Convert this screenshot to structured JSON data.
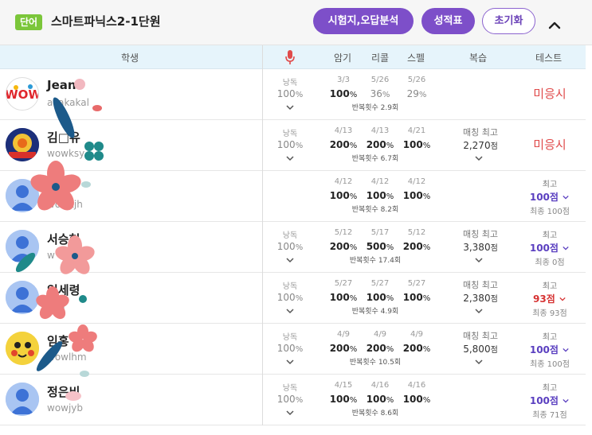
{
  "header": {
    "badge": "단어",
    "title": "스마트파닉스2-1단원",
    "btn_analysis": "시험지,오답분석",
    "btn_report": "성적표",
    "btn_reset": "초기화"
  },
  "columns": {
    "student": "학생",
    "memorize": "암기",
    "recall": "리콜",
    "spell": "스펠",
    "review": "복습",
    "test": "테스트"
  },
  "colors": {
    "accent": "#7d4fc9",
    "status_red": "#e04b4b",
    "badge_green": "#7bc63a"
  },
  "rows": [
    {
      "name": "Jean",
      "id": "akakakal",
      "read_label": "낭독",
      "read": "100",
      "read_unit": "%",
      "m_date": "3/3",
      "m": "100",
      "r_date": "5/26",
      "r": "36",
      "s_date": "5/26",
      "s": "29",
      "rep": "반복횟수 2.9회",
      "status": "미응시"
    },
    {
      "name": "김□유",
      "id": "wowksy",
      "read_label": "낭독",
      "read": "100",
      "read_unit": "%",
      "m_date": "4/13",
      "m": "200",
      "r_date": "4/13",
      "r": "200",
      "s_date": "4/21",
      "s": "100",
      "rep": "반복횟수 6.7회",
      "review_label": "매칭 최고",
      "review": "2,270",
      "review_unit": "점",
      "status": "미응시"
    },
    {
      "name": "□희",
      "id": "wowkjh",
      "m_date": "4/12",
      "m": "100",
      "r_date": "4/12",
      "r": "100",
      "s_date": "4/12",
      "s": "100",
      "rep": "반복횟수 8.2회",
      "best_label": "최고",
      "best": "100점",
      "last": "최종 100점"
    },
    {
      "name": "서승현",
      "id": "w",
      "read_label": "낭독",
      "read": "100",
      "read_unit": "%",
      "m_date": "5/12",
      "m": "200",
      "r_date": "5/17",
      "r": "500",
      "s_date": "5/12",
      "s": "200",
      "rep": "반복횟수 17.4회",
      "review_label": "매칭 최고",
      "review": "3,380",
      "review_unit": "점",
      "best_label": "최고",
      "best": "100점",
      "last": "최종 0점"
    },
    {
      "name": "임세령",
      "id": "wlsr",
      "read_label": "낭독",
      "read": "100",
      "read_unit": "%",
      "m_date": "5/27",
      "m": "100",
      "r_date": "5/27",
      "r": "100",
      "s_date": "5/27",
      "s": "100",
      "rep": "반복횟수 4.9회",
      "review_label": "매칭 최고",
      "review": "2,380",
      "review_unit": "점",
      "best_label": "최고",
      "best": "93점",
      "last": "최종 93점"
    },
    {
      "name": "임홍",
      "id": "wowlhm",
      "read_label": "낭독",
      "read": "100",
      "read_unit": "%",
      "m_date": "4/9",
      "m": "200",
      "r_date": "4/9",
      "r": "200",
      "s_date": "4/9",
      "s": "200",
      "rep": "반복횟수 10.5회",
      "review_label": "매칭 최고",
      "review": "5,800",
      "review_unit": "점",
      "best_label": "최고",
      "best": "100점",
      "last": "최종 100점"
    },
    {
      "name": "정은비",
      "id": "wowjyb",
      "read_label": "낭독",
      "read": "100",
      "read_unit": "%",
      "m_date": "4/15",
      "m": "100",
      "r_date": "4/16",
      "r": "100",
      "s_date": "4/16",
      "s": "100",
      "rep": "반복횟수 8.6회",
      "best_label": "최고",
      "best": "100점",
      "last": "최종 71점"
    }
  ]
}
